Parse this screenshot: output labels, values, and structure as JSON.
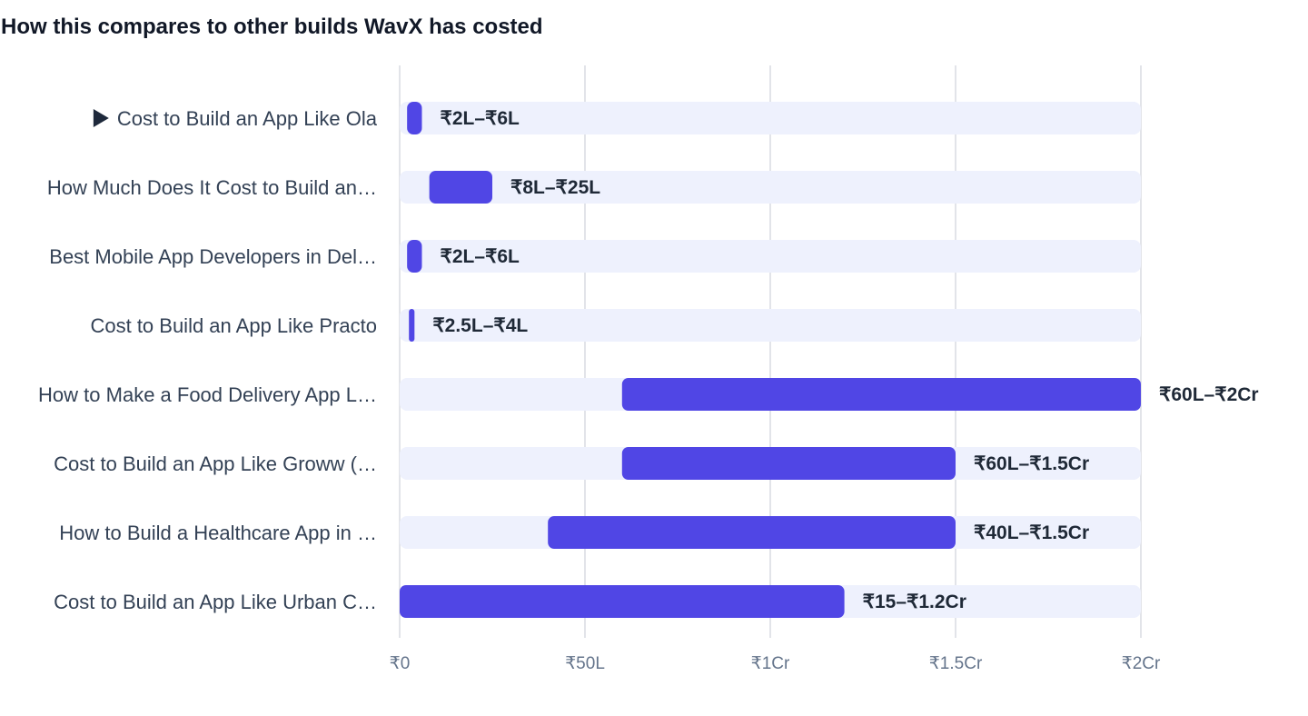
{
  "title": "How this compares to other builds WavX has costed",
  "chart_data": {
    "type": "bar",
    "orientation": "horizontal",
    "bar_style": "range",
    "title": "How this compares to other builds WavX has costed",
    "unit": "INR Lakh",
    "xlim": [
      0,
      200
    ],
    "x_ticks": [
      {
        "value": 0,
        "label": "₹0"
      },
      {
        "value": 50,
        "label": "₹50L"
      },
      {
        "value": 100,
        "label": "₹1Cr"
      },
      {
        "value": 150,
        "label": "₹1.5Cr"
      },
      {
        "value": 200,
        "label": "₹2Cr"
      }
    ],
    "grid": true,
    "categories": [
      "Cost to Build an App Like Ola",
      "How Much Does It Cost to Build an…",
      "Best Mobile App Developers in Del…",
      "Cost to Build an App Like Practo",
      "How to Make a Food Delivery App L…",
      "Cost to Build an App Like Groww (…",
      "How to Build a Healthcare App in …",
      "Cost to Build an App Like Urban C…"
    ],
    "current_marker": {
      "category_index": 0,
      "icon": "play-triangle-icon"
    },
    "ranges": [
      {
        "low": 2,
        "high": 6,
        "label": "₹2L–₹6L"
      },
      {
        "low": 8,
        "high": 25,
        "label": "₹8L–₹25L"
      },
      {
        "low": 2,
        "high": 6,
        "label": "₹2L–₹6L"
      },
      {
        "low": 2.5,
        "high": 4,
        "label": "₹2.5L–₹4L"
      },
      {
        "low": 60,
        "high": 200,
        "label": "₹60L–₹2Cr"
      },
      {
        "low": 60,
        "high": 150,
        "label": "₹60L–₹1.5Cr"
      },
      {
        "low": 40,
        "high": 150,
        "label": "₹40L–₹1.5Cr"
      },
      {
        "low": 0,
        "high": 120,
        "label": "₹15–₹1.2Cr"
      }
    ],
    "colors": {
      "bar": "#5046e5",
      "track": "#eef1fd",
      "grid": "#e2e4e9",
      "label": "#334155",
      "value_label": "#1f2937",
      "tick": "#64748b"
    }
  }
}
